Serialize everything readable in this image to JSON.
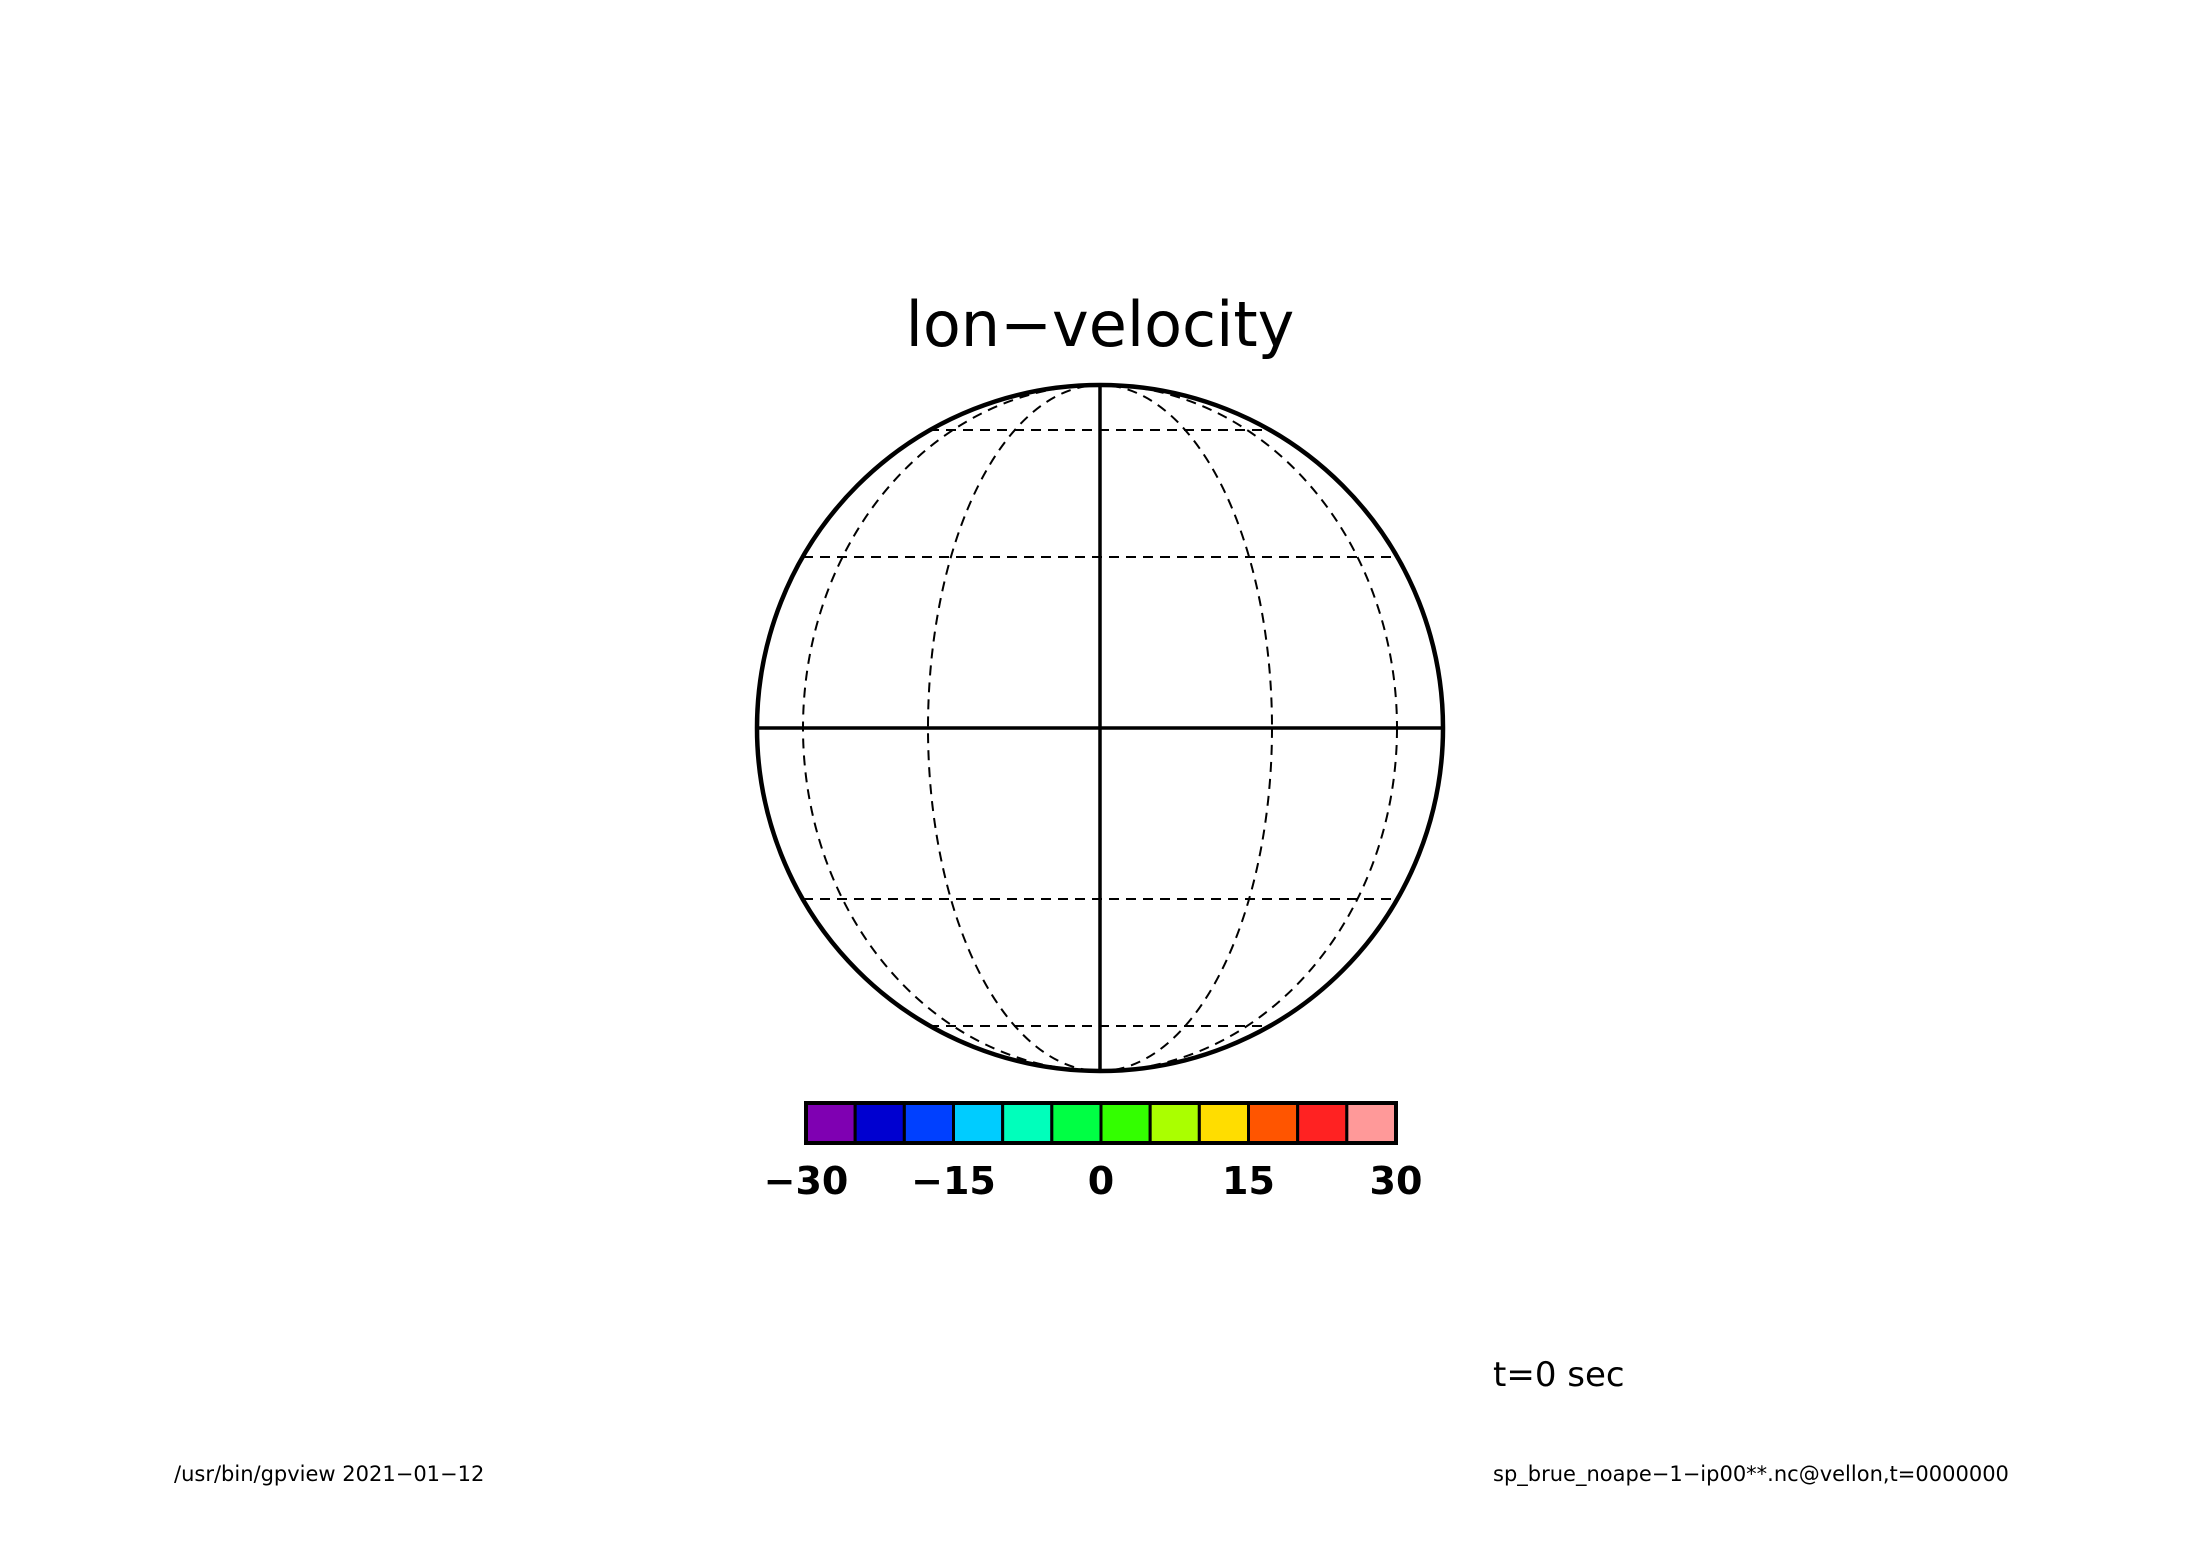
{
  "title": "lon−velocity",
  "colorbar": {
    "colors": [
      "#7f00b2",
      "#0000d0",
      "#0040ff",
      "#00ccff",
      "#00ffbb",
      "#00ff44",
      "#33ff00",
      "#aaff00",
      "#ffdd00",
      "#ff5500",
      "#ff2222",
      "#ff9999"
    ],
    "range": [
      -30,
      30
    ],
    "ticks": [
      {
        "value": -30,
        "label": "−30"
      },
      {
        "value": -15,
        "label": "−15"
      },
      {
        "value": 0,
        "label": "0"
      },
      {
        "value": 15,
        "label": "15"
      },
      {
        "value": 30,
        "label": "30"
      }
    ]
  },
  "time_label": "t=0 sec",
  "footer": {
    "left": "/usr/bin/gpview   2021−01−12",
    "right": "sp_brue_noape−1−ip00**.nc@vellon,t=0000000"
  },
  "colors": {
    "line": "#000000",
    "background": "#ffffff"
  }
}
